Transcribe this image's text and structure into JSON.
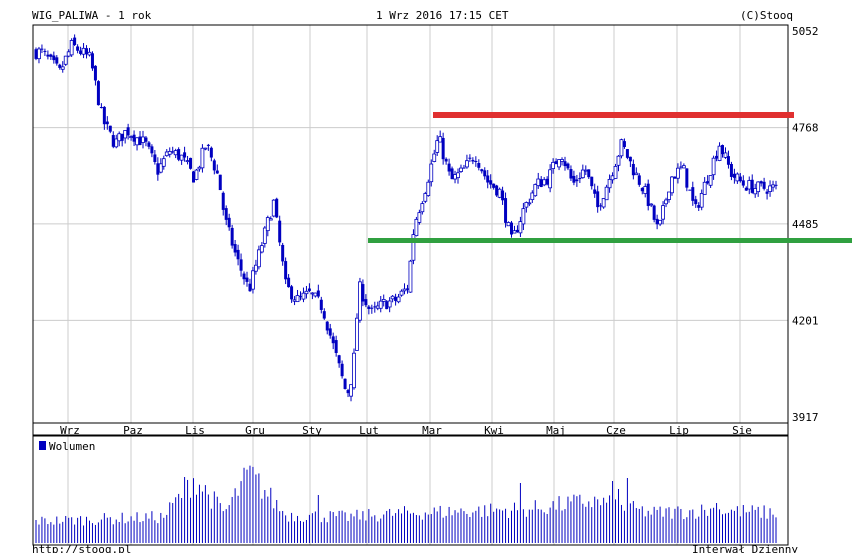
{
  "header": {
    "ticker": "WIG_PALIWA - 1 rok",
    "datetime": "1 Wrz 2016 17:15 CET",
    "copyright": "(C)Stooq"
  },
  "footer": {
    "url": "http://stooq.pl",
    "interval": "Interwał Dzienny"
  },
  "colors": {
    "candle": "#0000c0",
    "grid": "#cccccc",
    "frame": "#000000",
    "resistance_line": "#e03030",
    "support_line": "#30a040",
    "volume": "#0000c0"
  },
  "chart_data": [
    {
      "type": "candlestick",
      "ylim": [
        3917,
        5052
      ],
      "y_ticks": [
        5052,
        4768,
        4485,
        4201,
        3917
      ],
      "months": [
        "Wrz",
        "Paz",
        "Lis",
        "Gru",
        "Sty",
        "Lut",
        "Mar",
        "Kwi",
        "Maj",
        "Cze",
        "Lip",
        "Sie"
      ],
      "close_path": [
        {
          "m": 0.0,
          "v": 4990
        },
        {
          "m": 0.3,
          "v": 4930
        },
        {
          "m": 0.5,
          "v": 5010
        },
        {
          "m": 0.8,
          "v": 4970
        },
        {
          "m": 1.0,
          "v": 4790
        },
        {
          "m": 1.2,
          "v": 4720
        },
        {
          "m": 1.4,
          "v": 4760
        },
        {
          "m": 1.7,
          "v": 4720
        },
        {
          "m": 1.9,
          "v": 4640
        },
        {
          "m": 2.1,
          "v": 4700
        },
        {
          "m": 2.3,
          "v": 4680
        },
        {
          "m": 2.5,
          "v": 4620
        },
        {
          "m": 2.7,
          "v": 4720
        },
        {
          "m": 2.9,
          "v": 4620
        },
        {
          "m": 3.0,
          "v": 4500
        },
        {
          "m": 3.2,
          "v": 4380
        },
        {
          "m": 3.4,
          "v": 4290
        },
        {
          "m": 3.6,
          "v": 4420
        },
        {
          "m": 3.8,
          "v": 4550
        },
        {
          "m": 4.0,
          "v": 4300
        },
        {
          "m": 4.2,
          "v": 4260
        },
        {
          "m": 4.4,
          "v": 4280
        },
        {
          "m": 4.6,
          "v": 4240
        },
        {
          "m": 4.8,
          "v": 4110
        },
        {
          "m": 5.0,
          "v": 3980
        },
        {
          "m": 5.1,
          "v": 4050
        },
        {
          "m": 5.2,
          "v": 4300
        },
        {
          "m": 5.4,
          "v": 4220
        },
        {
          "m": 5.6,
          "v": 4250
        },
        {
          "m": 5.8,
          "v": 4260
        },
        {
          "m": 6.0,
          "v": 4300
        },
        {
          "m": 6.1,
          "v": 4480
        },
        {
          "m": 6.3,
          "v": 4600
        },
        {
          "m": 6.5,
          "v": 4740
        },
        {
          "m": 6.7,
          "v": 4610
        },
        {
          "m": 6.9,
          "v": 4640
        },
        {
          "m": 7.1,
          "v": 4690
        },
        {
          "m": 7.3,
          "v": 4610
        },
        {
          "m": 7.5,
          "v": 4580
        },
        {
          "m": 7.7,
          "v": 4430
        },
        {
          "m": 7.9,
          "v": 4530
        },
        {
          "m": 8.1,
          "v": 4600
        },
        {
          "m": 8.3,
          "v": 4620
        },
        {
          "m": 8.5,
          "v": 4700
        },
        {
          "m": 8.7,
          "v": 4600
        },
        {
          "m": 8.9,
          "v": 4650
        },
        {
          "m": 9.1,
          "v": 4530
        },
        {
          "m": 9.3,
          "v": 4620
        },
        {
          "m": 9.5,
          "v": 4720
        },
        {
          "m": 9.7,
          "v": 4640
        },
        {
          "m": 9.9,
          "v": 4570
        },
        {
          "m": 10.1,
          "v": 4460
        },
        {
          "m": 10.3,
          "v": 4620
        },
        {
          "m": 10.5,
          "v": 4650
        },
        {
          "m": 10.7,
          "v": 4520
        },
        {
          "m": 10.9,
          "v": 4620
        },
        {
          "m": 11.1,
          "v": 4720
        },
        {
          "m": 11.3,
          "v": 4630
        },
        {
          "m": 11.5,
          "v": 4600
        },
        {
          "m": 11.7,
          "v": 4590
        }
      ],
      "resistance_level": 4805,
      "support_level": 4436
    },
    {
      "type": "bar",
      "legend": "Wolumen",
      "volume_path": [
        {
          "m": 0.0,
          "v": 0.22
        },
        {
          "m": 1.0,
          "v": 0.24
        },
        {
          "m": 2.0,
          "v": 0.26
        },
        {
          "m": 2.5,
          "v": 0.65
        },
        {
          "m": 3.0,
          "v": 0.3
        },
        {
          "m": 3.4,
          "v": 0.7
        },
        {
          "m": 4.0,
          "v": 0.28
        },
        {
          "m": 5.0,
          "v": 0.26
        },
        {
          "m": 6.0,
          "v": 0.3
        },
        {
          "m": 7.0,
          "v": 0.32
        },
        {
          "m": 8.0,
          "v": 0.34
        },
        {
          "m": 9.0,
          "v": 0.42
        },
        {
          "m": 10.0,
          "v": 0.3
        },
        {
          "m": 11.0,
          "v": 0.33
        },
        {
          "m": 12.0,
          "v": 0.3
        }
      ],
      "spikes": [
        {
          "m": 2.35,
          "v": 0.66
        },
        {
          "m": 2.95,
          "v": 0.7
        },
        {
          "m": 3.15,
          "v": 0.52
        },
        {
          "m": 4.55,
          "v": 0.48
        },
        {
          "m": 6.45,
          "v": 0.55
        },
        {
          "m": 7.85,
          "v": 0.6
        },
        {
          "m": 8.45,
          "v": 0.55
        },
        {
          "m": 9.35,
          "v": 0.62
        },
        {
          "m": 9.6,
          "v": 0.65
        },
        {
          "m": 9.45,
          "v": 0.54
        },
        {
          "m": 11.05,
          "v": 0.4
        }
      ]
    }
  ]
}
